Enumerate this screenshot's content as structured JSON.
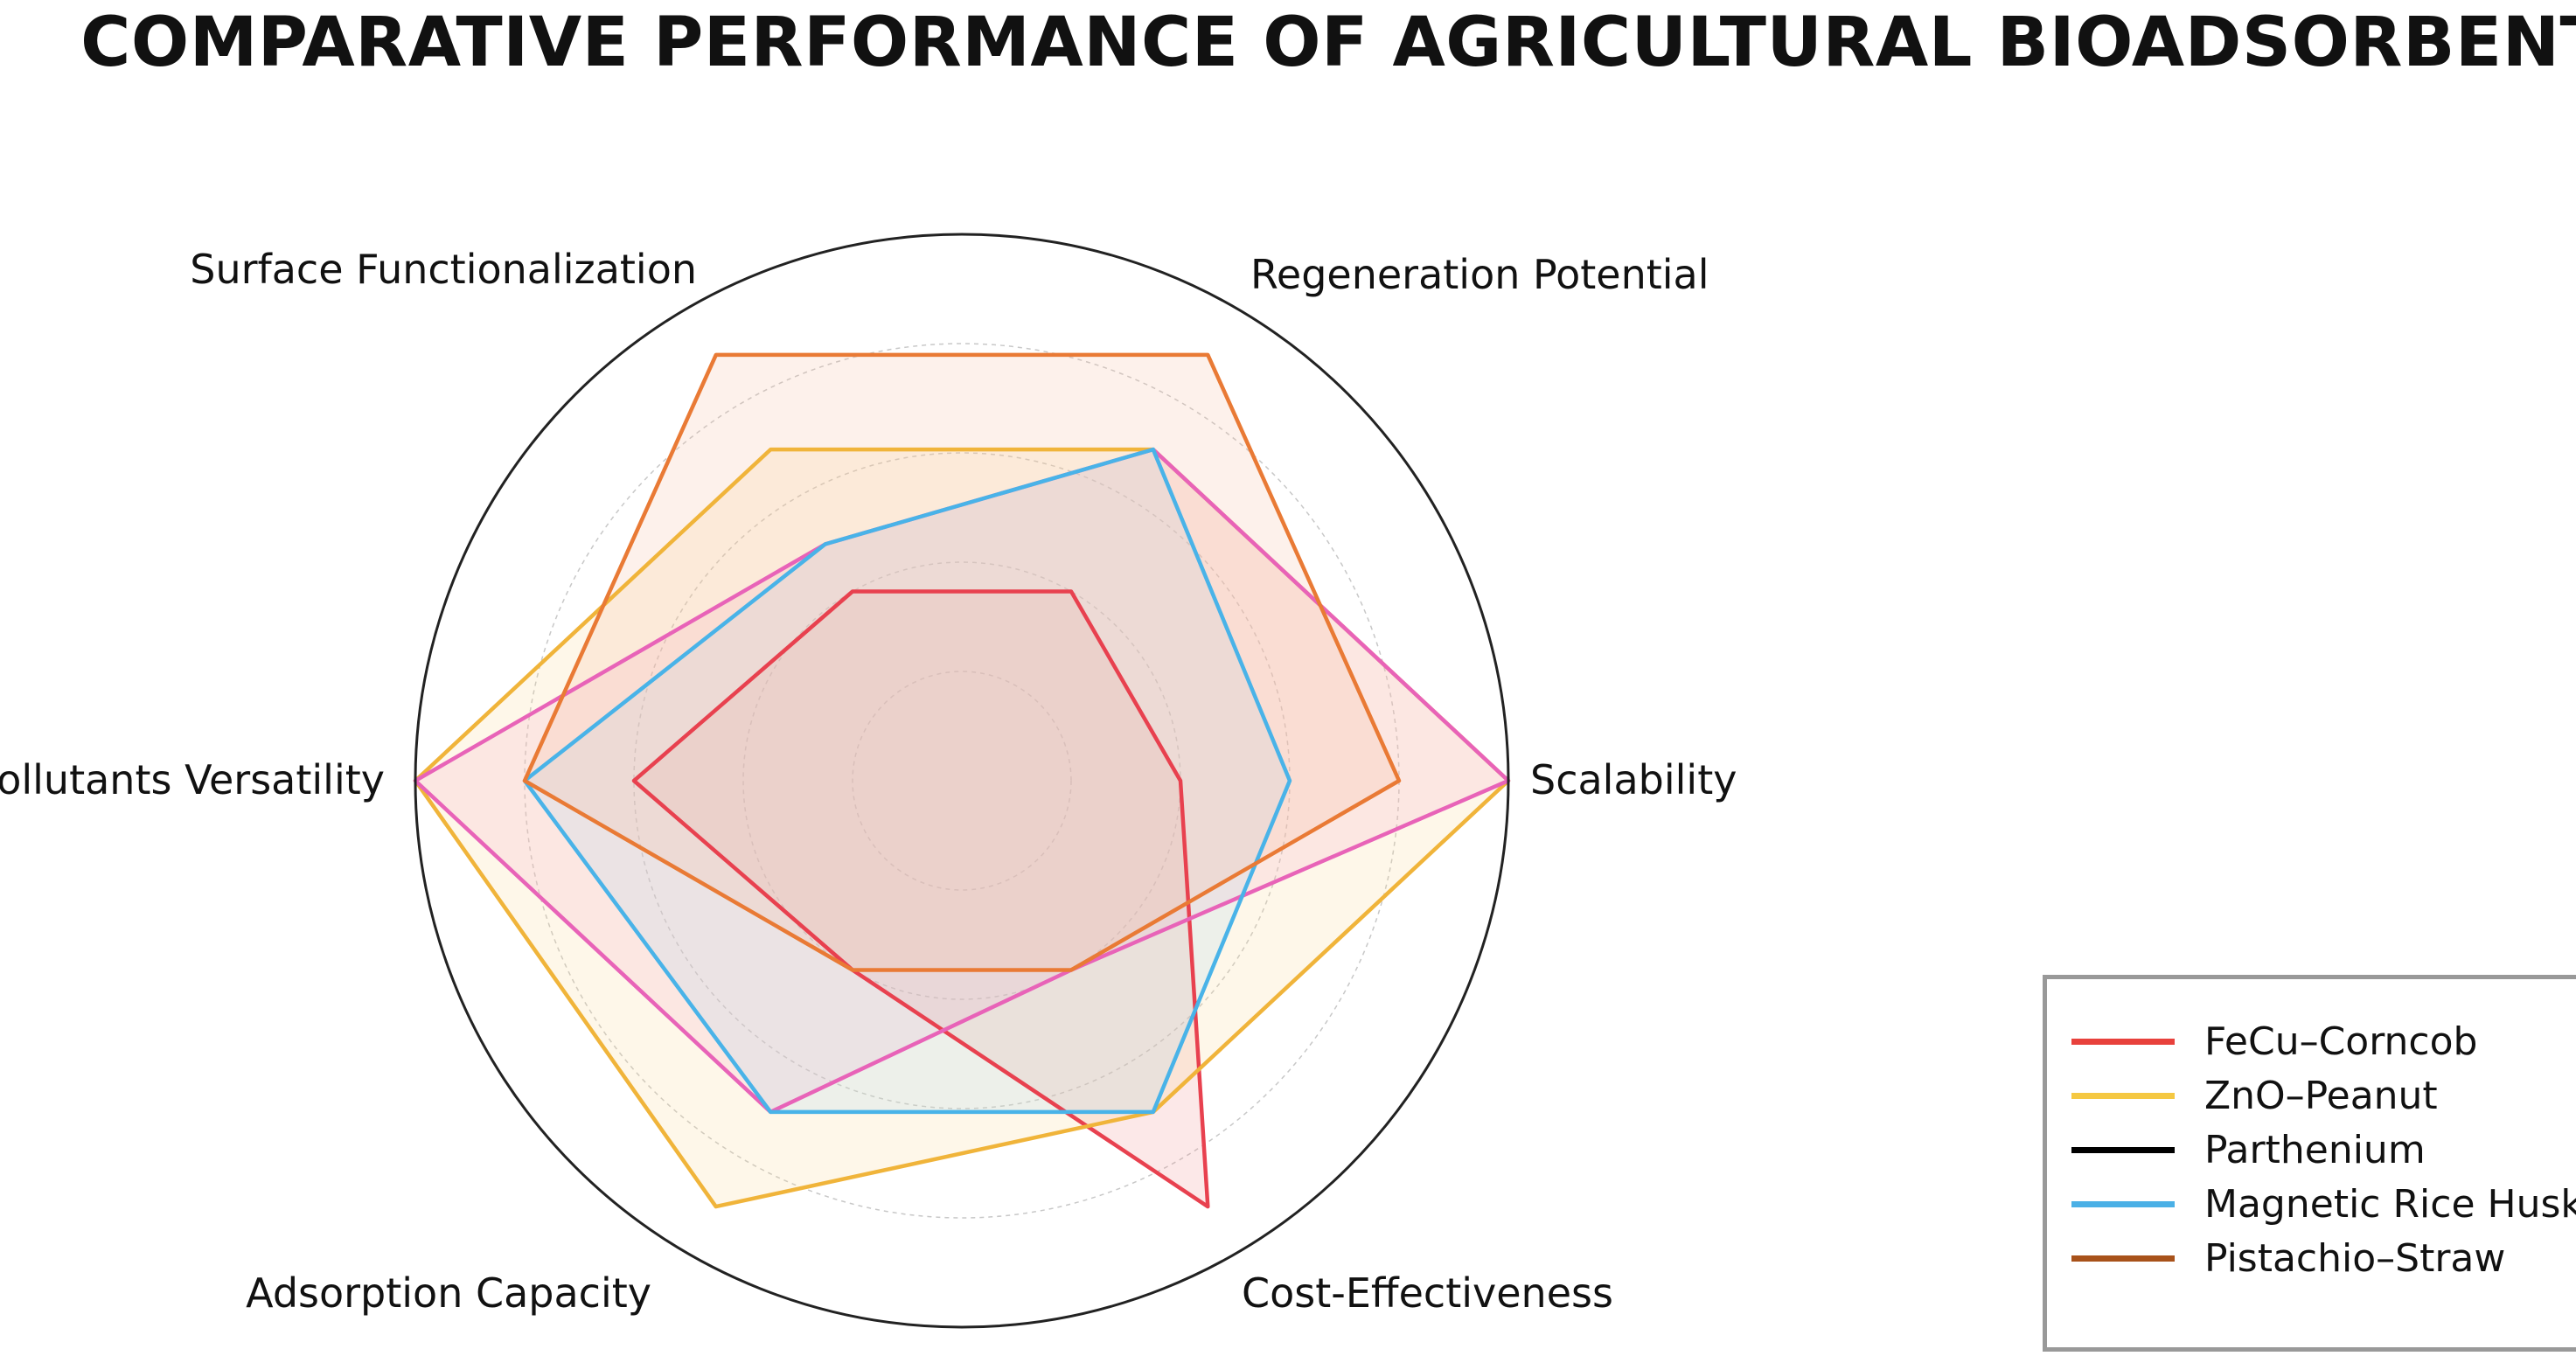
{
  "chart_data": {
    "type": "radar",
    "title": "COMPARATIVE PERFORMANCE OF AGRICULTURAL BIOADSORBENTS",
    "axes": [
      "Scalability",
      "Regeneration Potential",
      "Surface Functionalization",
      "Pollutants Versatility",
      "Adsorption Capacity",
      "Cost-Effectiveness"
    ],
    "rlim": [
      0,
      10
    ],
    "grid_rings": [
      2,
      4,
      6,
      8
    ],
    "series": [
      {
        "name": "FeCu–Corncob",
        "legend_color": "#e8413c",
        "line_color": "#e8414f",
        "fill_color": "#f28b8b",
        "values": [
          4,
          4,
          4,
          6,
          4,
          9
        ]
      },
      {
        "name": "ZnO–Peanut",
        "legend_color": "#f5c842",
        "line_color": "#f0b43a",
        "fill_color": "#fbd793",
        "values": [
          10,
          7,
          7,
          10,
          9,
          7
        ]
      },
      {
        "name": "Parthenium",
        "legend_color": "#000000",
        "line_color": "#e863b8",
        "fill_color": "#f5a8c8",
        "values": [
          10,
          7,
          5,
          10,
          7,
          4
        ]
      },
      {
        "name": "Magnetic Rice Husk",
        "legend_color": "#4ab0e6",
        "line_color": "#49b3e8",
        "fill_color": "#a9d6ee",
        "values": [
          6,
          7,
          5,
          8,
          7,
          7
        ]
      },
      {
        "name": "Pistachio–Straw",
        "legend_color": "#a8521a",
        "line_color": "#e97a35",
        "fill_color": "#f7b89a",
        "values": [
          8,
          9,
          9,
          8,
          4,
          4
        ]
      }
    ]
  }
}
